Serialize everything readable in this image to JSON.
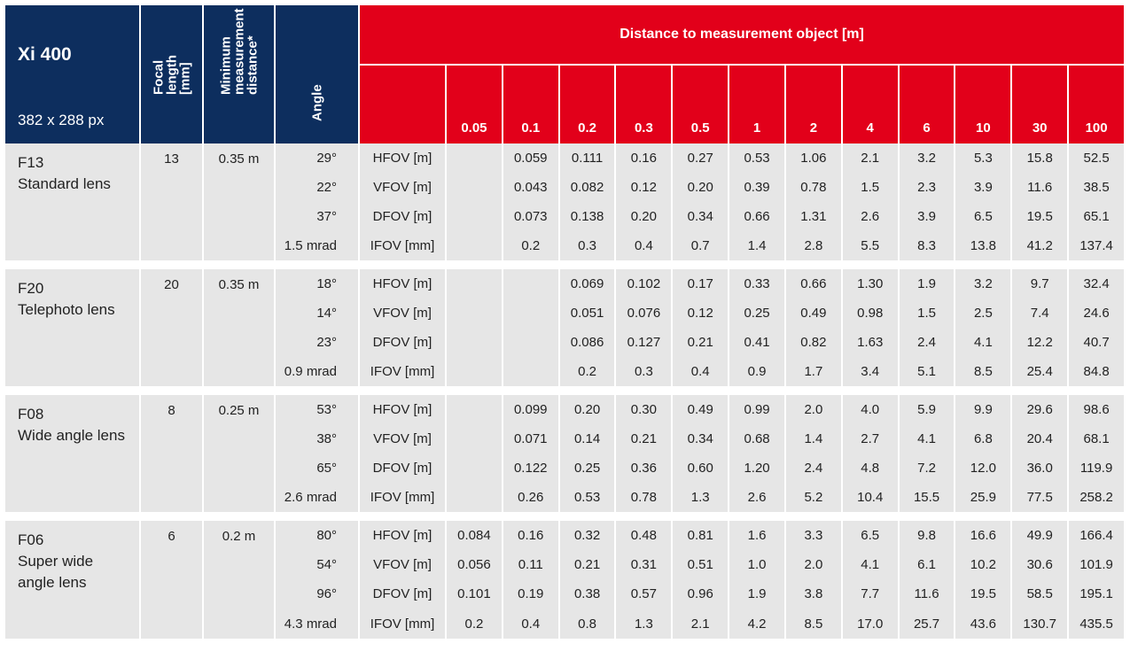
{
  "header": {
    "model": "Xi 400",
    "resolution": "382 x 288 px",
    "focal_length": "Focal length\n[mm]",
    "min_distance": "Minimum\nmeasurement\ndistance*",
    "angle": "Angle",
    "distance_title": "Distance to measurement object [m]",
    "distances": [
      "0.05",
      "0.1",
      "0.2",
      "0.3",
      "0.5",
      "1",
      "2",
      "4",
      "6",
      "10",
      "30",
      "100"
    ]
  },
  "lenses": [
    {
      "code": "F13",
      "name": "Standard lens",
      "focal": "13",
      "min_dist": "0.35 m",
      "rows": [
        {
          "angle": "29°",
          "fov": "HFOV [m]",
          "values": [
            "",
            "0.059",
            "0.111",
            "0.16",
            "0.27",
            "0.53",
            "1.06",
            "2.1",
            "3.2",
            "5.3",
            "15.8",
            "52.5"
          ]
        },
        {
          "angle": "22°",
          "fov": "VFOV [m]",
          "values": [
            "",
            "0.043",
            "0.082",
            "0.12",
            "0.20",
            "0.39",
            "0.78",
            "1.5",
            "2.3",
            "3.9",
            "11.6",
            "38.5"
          ]
        },
        {
          "angle": "37°",
          "fov": "DFOV [m]",
          "values": [
            "",
            "0.073",
            "0.138",
            "0.20",
            "0.34",
            "0.66",
            "1.31",
            "2.6",
            "3.9",
            "6.5",
            "19.5",
            "65.1"
          ]
        },
        {
          "angle": "1.5 mrad",
          "fov": "IFOV [mm]",
          "values": [
            "",
            "0.2",
            "0.3",
            "0.4",
            "0.7",
            "1.4",
            "2.8",
            "5.5",
            "8.3",
            "13.8",
            "41.2",
            "137.4"
          ]
        }
      ]
    },
    {
      "code": "F20",
      "name": "Telephoto lens",
      "focal": "20",
      "min_dist": "0.35 m",
      "rows": [
        {
          "angle": "18°",
          "fov": "HFOV [m]",
          "values": [
            "",
            "",
            "0.069",
            "0.102",
            "0.17",
            "0.33",
            "0.66",
            "1.30",
            "1.9",
            "3.2",
            "9.7",
            "32.4"
          ]
        },
        {
          "angle": "14°",
          "fov": "VFOV [m]",
          "values": [
            "",
            "",
            "0.051",
            "0.076",
            "0.12",
            "0.25",
            "0.49",
            "0.98",
            "1.5",
            "2.5",
            "7.4",
            "24.6"
          ]
        },
        {
          "angle": "23°",
          "fov": "DFOV [m]",
          "values": [
            "",
            "",
            "0.086",
            "0.127",
            "0.21",
            "0.41",
            "0.82",
            "1.63",
            "2.4",
            "4.1",
            "12.2",
            "40.7"
          ]
        },
        {
          "angle": "0.9 mrad",
          "fov": "IFOV [mm]",
          "values": [
            "",
            "",
            "0.2",
            "0.3",
            "0.4",
            "0.9",
            "1.7",
            "3.4",
            "5.1",
            "8.5",
            "25.4",
            "84.8"
          ]
        }
      ]
    },
    {
      "code": "F08",
      "name": "Wide angle lens",
      "focal": "8",
      "min_dist": "0.25 m",
      "rows": [
        {
          "angle": "53°",
          "fov": "HFOV [m]",
          "values": [
            "",
            "0.099",
            "0.20",
            "0.30",
            "0.49",
            "0.99",
            "2.0",
            "4.0",
            "5.9",
            "9.9",
            "29.6",
            "98.6"
          ]
        },
        {
          "angle": "38°",
          "fov": "VFOV [m]",
          "values": [
            "",
            "0.071",
            "0.14",
            "0.21",
            "0.34",
            "0.68",
            "1.4",
            "2.7",
            "4.1",
            "6.8",
            "20.4",
            "68.1"
          ]
        },
        {
          "angle": "65°",
          "fov": "DFOV [m]",
          "values": [
            "",
            "0.122",
            "0.25",
            "0.36",
            "0.60",
            "1.20",
            "2.4",
            "4.8",
            "7.2",
            "12.0",
            "36.0",
            "119.9"
          ]
        },
        {
          "angle": "2.6 mrad",
          "fov": "IFOV [mm]",
          "values": [
            "",
            "0.26",
            "0.53",
            "0.78",
            "1.3",
            "2.6",
            "5.2",
            "10.4",
            "15.5",
            "25.9",
            "77.5",
            "258.2"
          ]
        }
      ]
    },
    {
      "code": "F06",
      "name": "Super wide\nangle lens",
      "focal": "6",
      "min_dist": "0.2 m",
      "rows": [
        {
          "angle": "80°",
          "fov": "HFOV [m]",
          "values": [
            "0.084",
            "0.16",
            "0.32",
            "0.48",
            "0.81",
            "1.6",
            "3.3",
            "6.5",
            "9.8",
            "16.6",
            "49.9",
            "166.4"
          ]
        },
        {
          "angle": "54°",
          "fov": "VFOV [m]",
          "values": [
            "0.056",
            "0.11",
            "0.21",
            "0.31",
            "0.51",
            "1.0",
            "2.0",
            "4.1",
            "6.1",
            "10.2",
            "30.6",
            "101.9"
          ]
        },
        {
          "angle": "96°",
          "fov": "DFOV [m]",
          "values": [
            "0.101",
            "0.19",
            "0.38",
            "0.57",
            "0.96",
            "1.9",
            "3.8",
            "7.7",
            "11.6",
            "19.5",
            "58.5",
            "195.1"
          ]
        },
        {
          "angle": "4.3 mrad",
          "fov": "IFOV [mm]",
          "values": [
            "0.2",
            "0.4",
            "0.8",
            "1.3",
            "2.1",
            "4.2",
            "8.5",
            "17.0",
            "25.7",
            "43.6",
            "130.7",
            "435.5"
          ]
        }
      ]
    }
  ]
}
